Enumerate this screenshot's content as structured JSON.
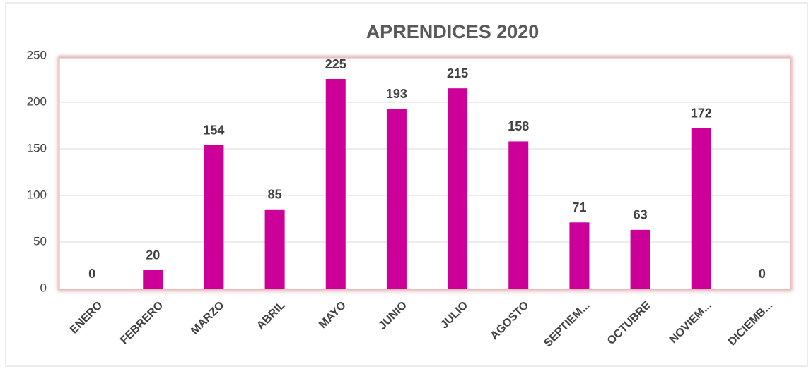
{
  "chart_data": {
    "type": "bar",
    "title": "APRENDICES 2020",
    "categories": [
      "ENERO",
      "FEBRERO",
      "MARZO",
      "ABRIL",
      "MAYO",
      "JUNIO",
      "JULIO",
      "AGOSTO",
      "SEPTIEM...",
      "OCTUBRE",
      "NOVIEM...",
      "DICIEMB..."
    ],
    "values": [
      0,
      20,
      154,
      85,
      225,
      193,
      215,
      158,
      71,
      63,
      172,
      0
    ],
    "color": "#cc0099",
    "ylim": [
      0,
      250
    ],
    "yticks": [
      0,
      50,
      100,
      150,
      200,
      250
    ],
    "grid": true
  }
}
